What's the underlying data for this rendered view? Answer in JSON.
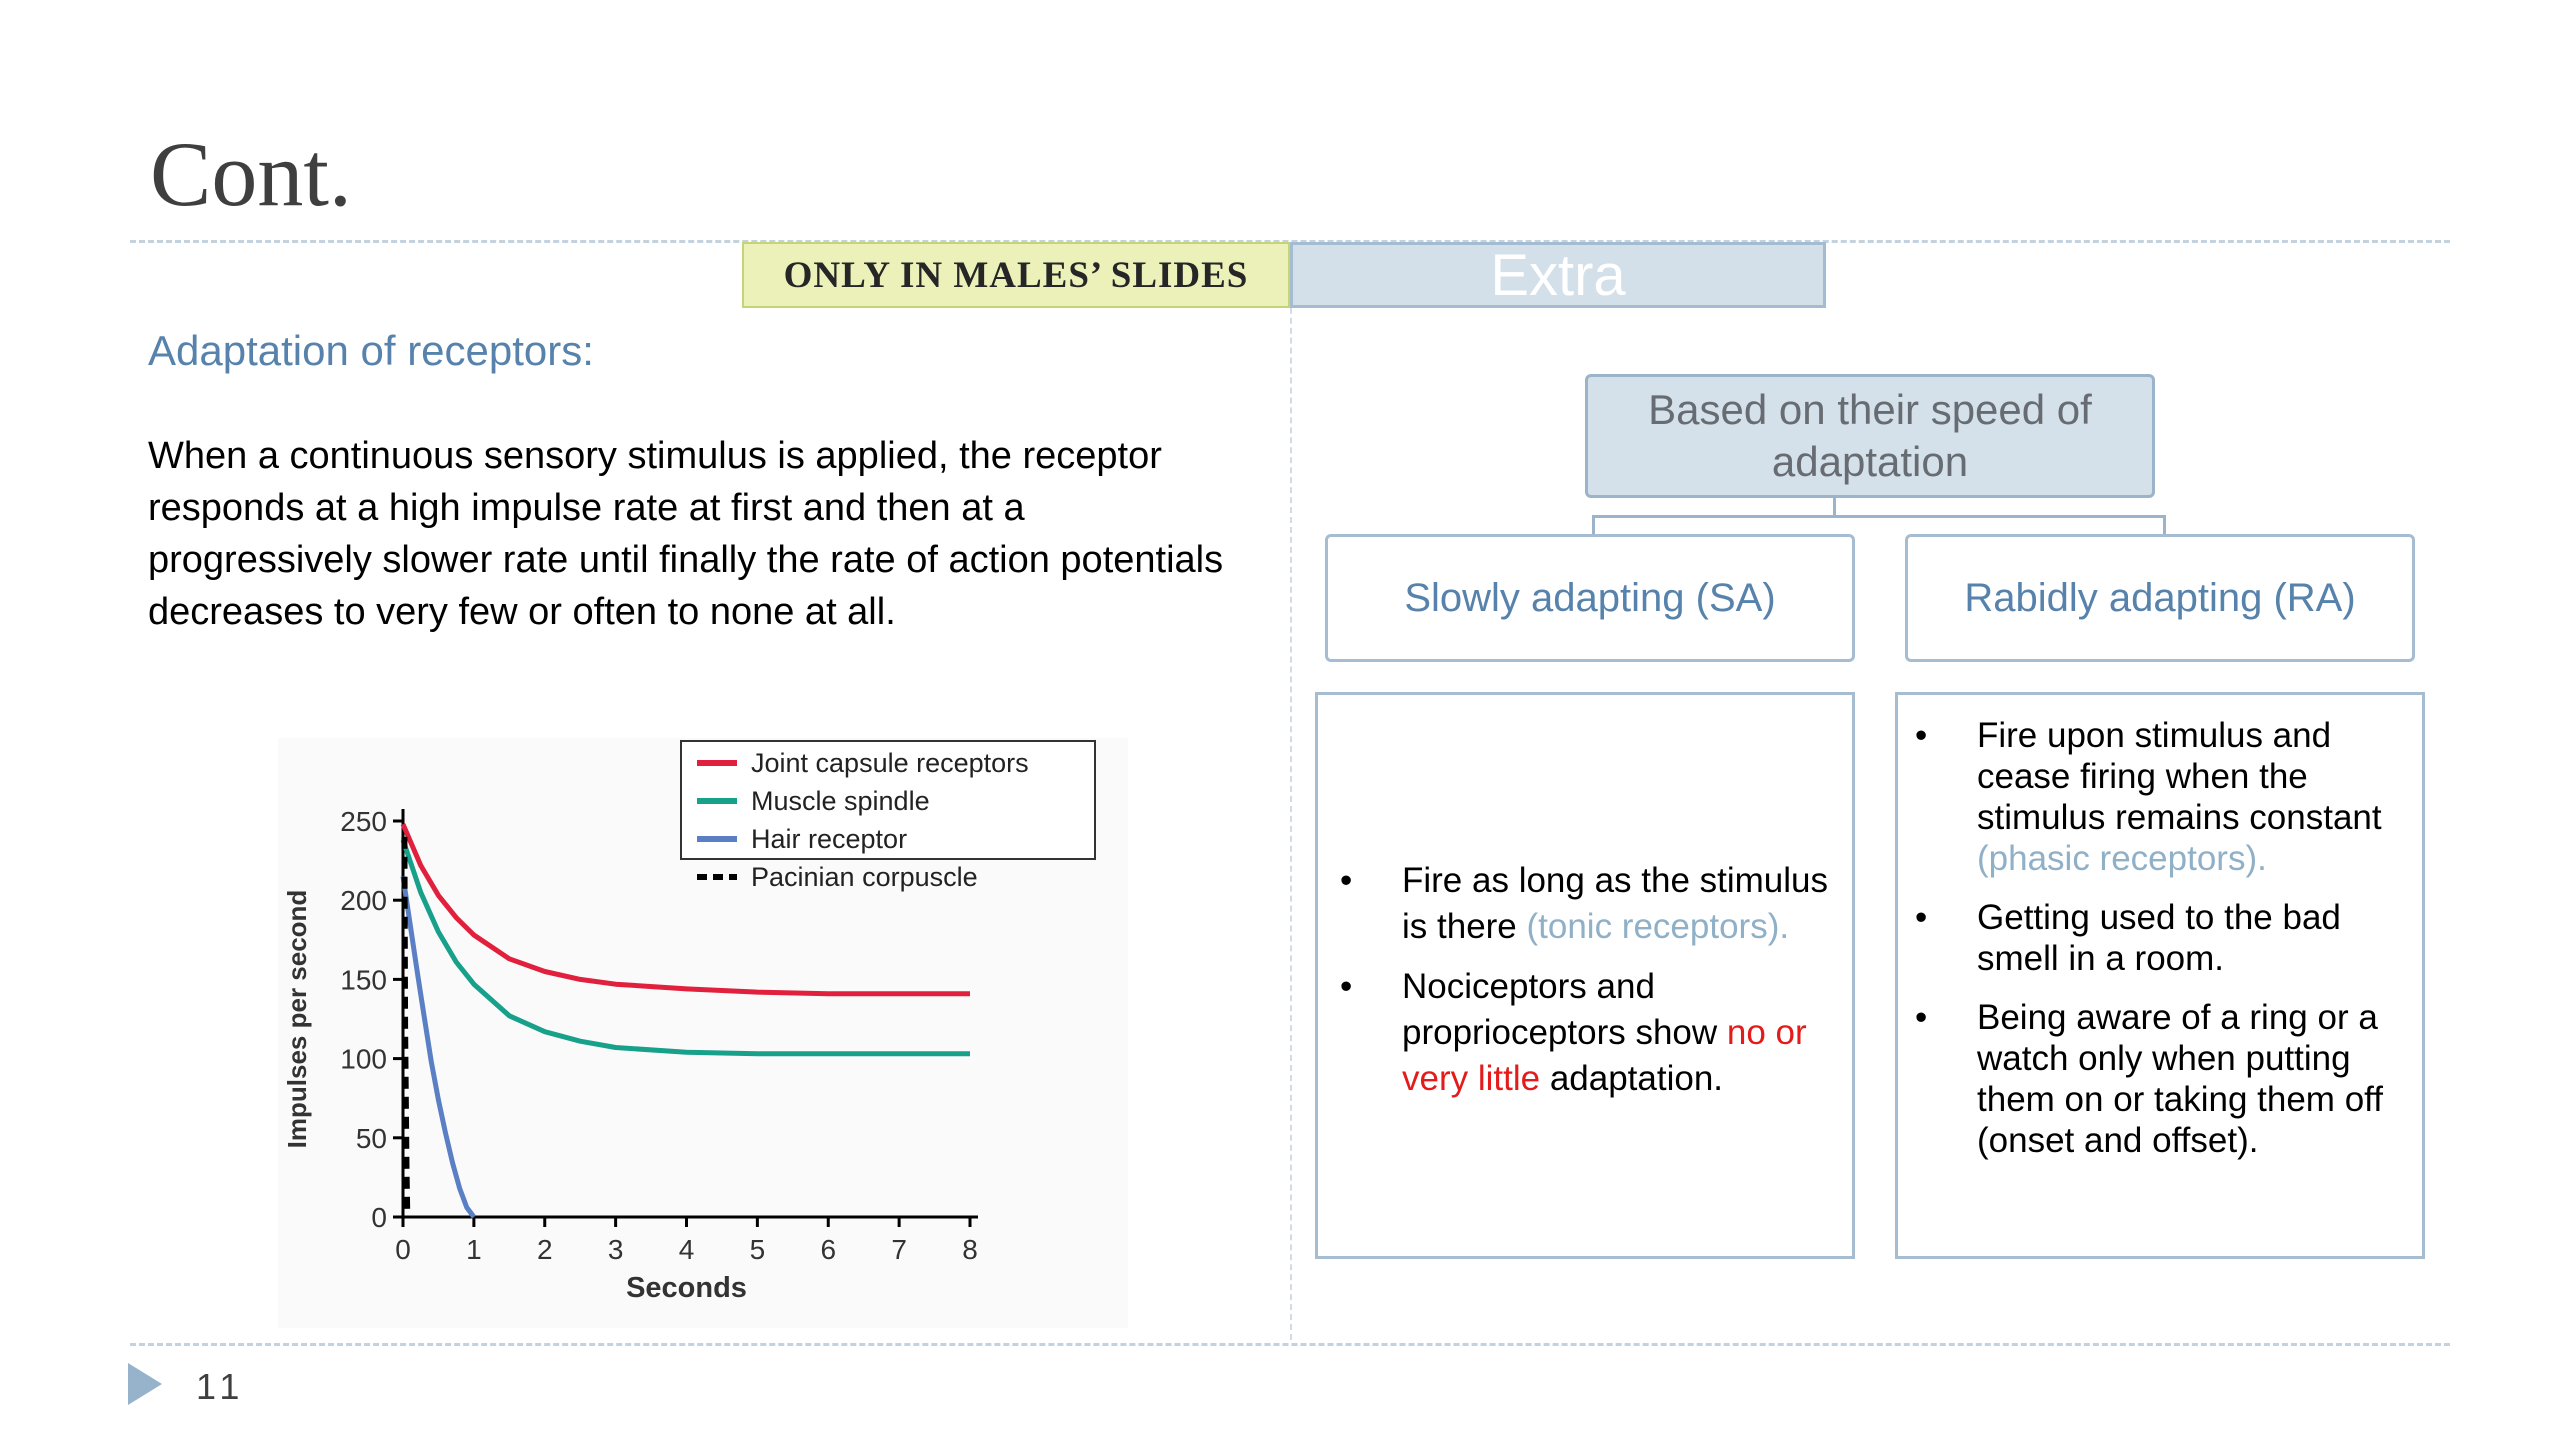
{
  "slide": {
    "title": "Cont.",
    "page_number": "11"
  },
  "tags": {
    "only_males": "ONLY IN MALES’ SLIDES",
    "extra": "Extra"
  },
  "left": {
    "heading": "Adaptation of receptors:",
    "paragraph": "When a continuous sensory stimulus is applied, the receptor responds at a high impulse rate at first and then at a progressively slower rate until finally the rate of action potentials decreases to very few or often to none at all."
  },
  "diagram": {
    "root": "Based on their speed of adaptation",
    "sa_label": "Slowly adapting (SA)",
    "ra_label": "Rabidly adapting (RA)",
    "sa_bullets": [
      {
        "text": "Fire as long as the stimulus is there ",
        "note": "(tonic receptors)."
      },
      {
        "before": "Nociceptors and proprioceptors show ",
        "highlight": "no or very little",
        "after": " adaptation."
      }
    ],
    "ra_bullets": [
      {
        "text": "Fire upon stimulus and cease firing when the stimulus remains constant  ",
        "note": "(phasic receptors)."
      },
      {
        "text": "Getting used to the bad smell in a  room."
      },
      {
        "text": "Being aware of a ring or a watch only when putting  them on or taking them off (onset and offset)."
      }
    ],
    "bullet_char": "•",
    "colors": {
      "note": "#8fb0c7",
      "highlight": "#e41b1b",
      "link": "#5682ac"
    }
  },
  "chart_data": {
    "type": "line",
    "xlabel": "Seconds",
    "ylabel": "Impulses per second",
    "xlim": [
      0,
      8
    ],
    "ylim": [
      0,
      250
    ],
    "x_ticks": [
      0,
      1,
      2,
      3,
      4,
      5,
      6,
      7,
      8
    ],
    "y_ticks": [
      0,
      50,
      100,
      150,
      200,
      250
    ],
    "legend_position": "top-right",
    "series": [
      {
        "name": "Joint capsule receptors",
        "color": "#e0203c",
        "style": "solid",
        "x": [
          0,
          0.25,
          0.5,
          0.75,
          1,
          1.5,
          2,
          2.5,
          3,
          4,
          5,
          6,
          7,
          8
        ],
        "y": [
          248,
          222,
          203,
          189,
          178,
          163,
          155,
          150,
          147,
          144,
          142,
          141,
          141,
          141
        ]
      },
      {
        "name": "Muscle spindle",
        "color": "#17a08a",
        "style": "solid",
        "x": [
          0,
          0.25,
          0.5,
          0.75,
          1,
          1.5,
          2,
          2.5,
          3,
          4,
          5,
          6,
          7,
          8
        ],
        "y": [
          238,
          205,
          180,
          161,
          147,
          127,
          117,
          111,
          107,
          104,
          103,
          103,
          103,
          103
        ]
      },
      {
        "name": "Hair receptor",
        "color": "#5a7fc4",
        "style": "solid",
        "x": [
          0,
          0.1,
          0.2,
          0.3,
          0.4,
          0.5,
          0.6,
          0.7,
          0.8,
          0.9,
          1.0
        ],
        "y": [
          215,
          185,
          155,
          126,
          98,
          74,
          53,
          34,
          18,
          6,
          0
        ]
      },
      {
        "name": "Pacinian corpuscle",
        "color": "#000000",
        "style": "dashed",
        "x": [
          0.02,
          0.03,
          0.05,
          0.06
        ],
        "y": [
          240,
          120,
          30,
          0
        ]
      }
    ]
  }
}
